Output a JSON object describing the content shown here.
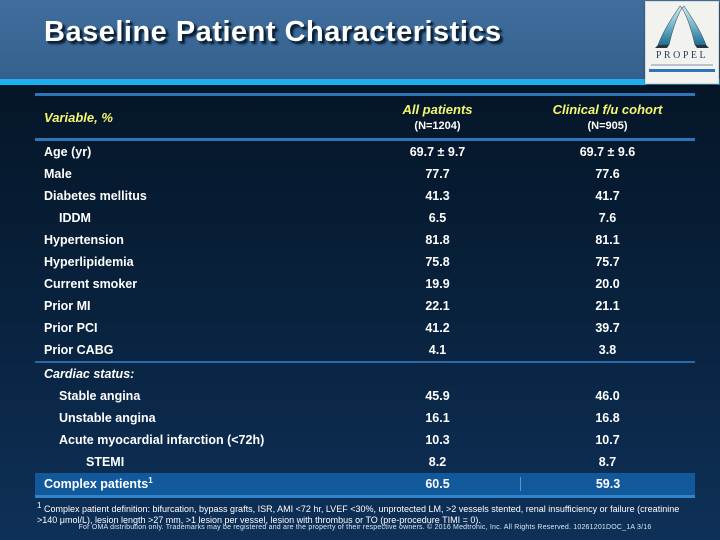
{
  "slide": {
    "title": "Baseline Patient Characteristics",
    "logo_text": "PROPEL"
  },
  "colors": {
    "header_band": "#3a6795",
    "cyan_bar": "#1db0ee",
    "table_line": "#2f74b8",
    "highlight_row": "#11599b",
    "header_text_yellow": "#f5f76e",
    "body_text": "#ffffff"
  },
  "table": {
    "variable_header": "Variable, %",
    "columns": [
      {
        "label": "All patients",
        "sub": "(N=1204)"
      },
      {
        "label": "Clinical f/u cohort",
        "sub": "(N=905)"
      }
    ],
    "rows": [
      {
        "label": "Age (yr)",
        "indent": 0,
        "values": [
          "69.7 ± 9.7",
          "69.7 ± 9.6"
        ]
      },
      {
        "label": "Male",
        "indent": 0,
        "values": [
          "77.7",
          "77.6"
        ]
      },
      {
        "label": "Diabetes mellitus",
        "indent": 0,
        "values": [
          "41.3",
          "41.7"
        ]
      },
      {
        "label": "IDDM",
        "indent": 1,
        "values": [
          "6.5",
          "7.6"
        ]
      },
      {
        "label": "Hypertension",
        "indent": 0,
        "values": [
          "81.8",
          "81.1"
        ]
      },
      {
        "label": "Hyperlipidemia",
        "indent": 0,
        "values": [
          "75.8",
          "75.7"
        ]
      },
      {
        "label": "Current smoker",
        "indent": 0,
        "values": [
          "19.9",
          "20.0"
        ]
      },
      {
        "label": "Prior MI",
        "indent": 0,
        "values": [
          "22.1",
          "21.1"
        ]
      },
      {
        "label": "Prior PCI",
        "indent": 0,
        "values": [
          "41.2",
          "39.7"
        ]
      },
      {
        "label": "Prior CABG",
        "indent": 0,
        "values": [
          "4.1",
          "3.8"
        ],
        "separator_after": true
      },
      {
        "label": "Cardiac status:",
        "indent": 0,
        "italic": true,
        "values": [
          "",
          ""
        ]
      },
      {
        "label": "Stable angina",
        "indent": 1,
        "values": [
          "45.9",
          "46.0"
        ]
      },
      {
        "label": "Unstable angina",
        "indent": 1,
        "values": [
          "16.1",
          "16.8"
        ]
      },
      {
        "label": "Acute myocardial infarction (<72h)",
        "indent": 1,
        "values": [
          "10.3",
          "10.7"
        ]
      },
      {
        "label": "STEMI",
        "indent": 2,
        "values": [
          "8.2",
          "8.7"
        ]
      },
      {
        "label": "Complex patients",
        "sup": "1",
        "indent": 0,
        "highlight": true,
        "values": [
          "60.5",
          "59.3"
        ]
      }
    ]
  },
  "footnote_sup": "1",
  "footnote": " Complex patient definition: bifurcation, bypass grafts, ISR, AMI <72 hr, LVEF <30%, unprotected LM, >2 vessels stented, renal insufficiency or failure (creatinine >140 μmol/L), lesion length >27 mm, >1 lesion per vessel, lesion with thrombus or TO (pre-procedure TIMI = 0).",
  "fineprint": "For OMA distribution only. Trademarks may be registered and are the property of their respective owners. © 2016 Medtronic, Inc. All Rights Reserved. 10261201DOC_1A 3/16"
}
